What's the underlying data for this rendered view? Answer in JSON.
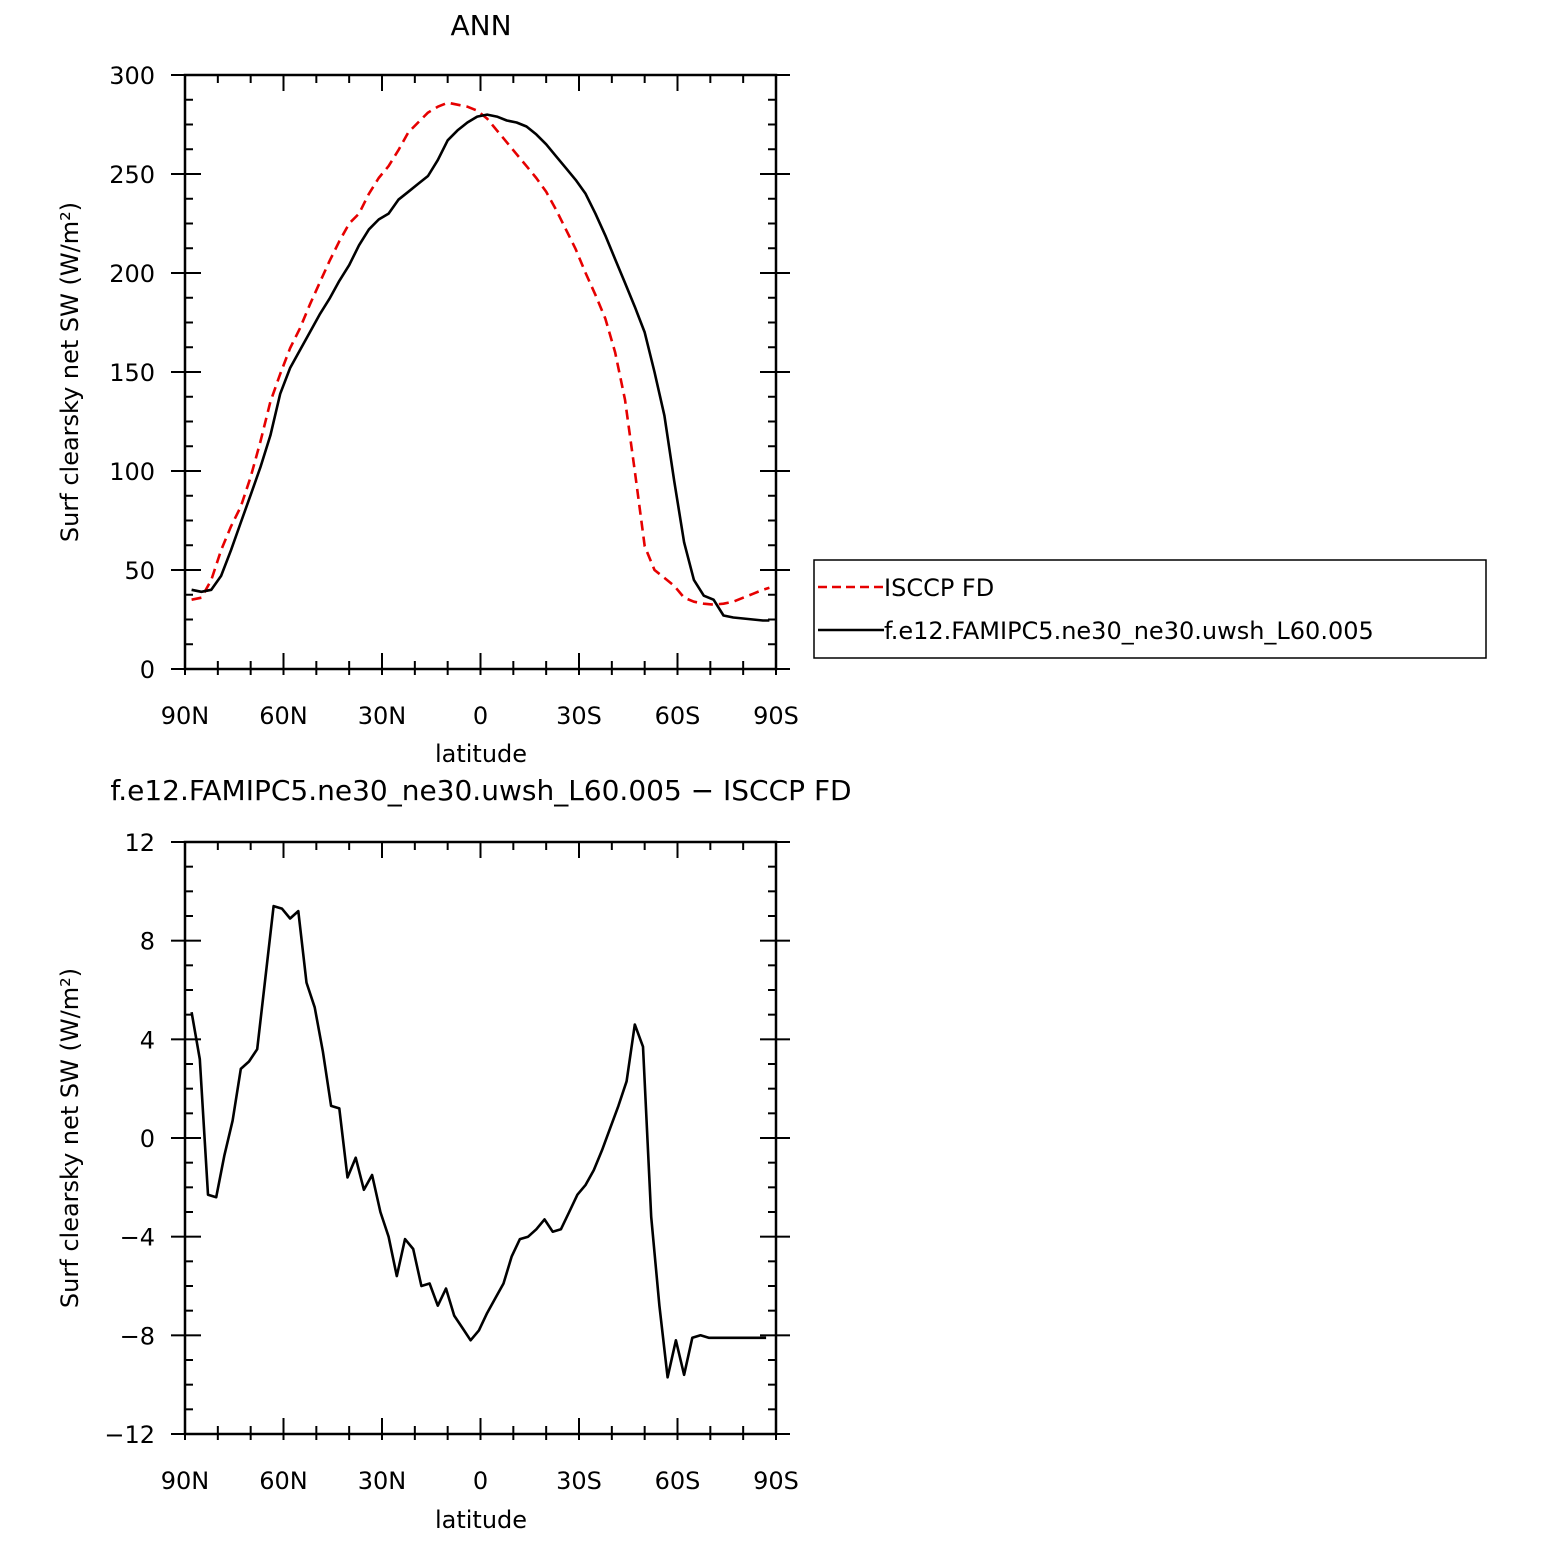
{
  "chart_data": [
    {
      "type": "line",
      "title": "ANN",
      "xlabel": "latitude",
      "ylabel": "Surf clearsky net SW (W/m²)",
      "xlim": [
        90,
        -90
      ],
      "ylim": [
        0,
        300
      ],
      "x_ticks": [
        90,
        60,
        30,
        0,
        -30,
        -60,
        -90
      ],
      "x_tick_labels": [
        "90N",
        "60N",
        "30N",
        "0",
        "30S",
        "60S",
        "90S"
      ],
      "y_ticks": [
        0,
        50,
        100,
        150,
        200,
        250,
        300
      ],
      "y_tick_labels": [
        "0",
        "50",
        "100",
        "150",
        "200",
        "250",
        "300"
      ],
      "legend": {
        "position": "right"
      },
      "series": [
        {
          "name": "ISCCP FD",
          "color": "#e60000",
          "dash": "dashed",
          "x": [
            88,
            85,
            82,
            79,
            76,
            73,
            70,
            67,
            64,
            61,
            58,
            55,
            52,
            49,
            46,
            43,
            40,
            37,
            34,
            31,
            28,
            25,
            22,
            19,
            16,
            13,
            10,
            7,
            4,
            1,
            -2,
            -5,
            -8,
            -11,
            -14,
            -17,
            -20,
            -23,
            -26,
            -29,
            -32,
            -35,
            -38,
            -41,
            -44,
            -47,
            -50,
            -53,
            -56,
            -59,
            -62,
            -65,
            -68,
            -71,
            -74,
            -77,
            -80,
            -83,
            -86,
            -88
          ],
          "values": [
            35,
            36,
            45,
            60,
            72,
            82,
            97,
            115,
            135,
            149,
            162,
            172,
            184,
            195,
            206,
            216,
            225,
            230,
            240,
            248,
            254,
            262,
            271,
            276,
            281,
            284,
            286,
            285,
            284,
            282,
            278,
            272,
            266,
            260,
            254,
            248,
            241,
            232,
            222,
            212,
            200,
            189,
            177,
            160,
            136,
            100,
            62,
            50,
            46,
            42,
            36,
            34,
            33,
            32.5,
            33,
            34,
            36,
            38,
            40,
            41
          ]
        },
        {
          "name": "f.e12.FAMIPC5.ne30_ne30.uwsh_L60.005",
          "color": "#000000",
          "dash": "solid",
          "x": [
            88,
            85,
            82,
            79,
            76,
            73,
            70,
            67,
            64,
            61,
            58,
            55,
            52,
            49,
            46,
            43,
            40,
            37,
            34,
            31,
            28,
            25,
            22,
            19,
            16,
            13,
            10,
            7,
            4,
            1,
            -2,
            -5,
            -8,
            -11,
            -14,
            -17,
            -20,
            -23,
            -26,
            -29,
            -32,
            -35,
            -38,
            -41,
            -44,
            -47,
            -50,
            -53,
            -56,
            -59,
            -62,
            -65,
            -68,
            -71,
            -74,
            -77,
            -80,
            -83,
            -86,
            -88
          ],
          "values": [
            40,
            39,
            40,
            47,
            60,
            74,
            88,
            102,
            118,
            139,
            152,
            161,
            170,
            179,
            187,
            196,
            204,
            214,
            222,
            227,
            230,
            237,
            241,
            245,
            249,
            257,
            267,
            272,
            276,
            279,
            280,
            279,
            277,
            276,
            274,
            270,
            265,
            259,
            253,
            247,
            240,
            230,
            219,
            207,
            195,
            183,
            170,
            150,
            128,
            95,
            64,
            45,
            37,
            35,
            27,
            26,
            25.5,
            25,
            24.5,
            24.5
          ]
        }
      ]
    },
    {
      "type": "line",
      "title": "f.e12.FAMIPC5.ne30_ne30.uwsh_L60.005 − ISCCP FD",
      "xlabel": "latitude",
      "ylabel": "Surf clearsky net SW (W/m²)",
      "xlim": [
        90,
        -90
      ],
      "ylim": [
        -12,
        12
      ],
      "x_ticks": [
        90,
        60,
        30,
        0,
        -30,
        -60,
        -90
      ],
      "x_tick_labels": [
        "90N",
        "60N",
        "30N",
        "0",
        "30S",
        "60S",
        "90S"
      ],
      "y_ticks": [
        -12,
        -8,
        -4,
        0,
        4,
        8,
        12
      ],
      "y_tick_labels": [
        "−12",
        "−8",
        "−4",
        "0",
        "4",
        "8",
        "12"
      ],
      "series": [
        {
          "color": "#000000",
          "dash": "solid",
          "x": [
            88,
            85.5,
            83,
            80.5,
            78,
            75.5,
            73,
            70.5,
            68,
            65.5,
            63,
            60.5,
            58,
            55.5,
            53,
            50.5,
            48,
            45.5,
            43,
            40.5,
            38,
            35.5,
            33,
            30.5,
            28,
            25.5,
            23,
            20.5,
            18,
            15.5,
            13,
            10.5,
            8,
            5.5,
            3,
            0.5,
            -2,
            -4.5,
            -7,
            -9.5,
            -12,
            -14.5,
            -17,
            -19.5,
            -22,
            -24.5,
            -27,
            -29.5,
            -32,
            -34.5,
            -37,
            -39.5,
            -42,
            -44.5,
            -47,
            -49.5,
            -52,
            -54.5,
            -57,
            -59.5,
            -62,
            -64.5,
            -67,
            -69.5,
            -72,
            -74.5,
            -77,
            -79.5,
            -82,
            -84.5,
            -87
          ],
          "values": [
            5.1,
            3.2,
            -2.3,
            -2.4,
            -0.7,
            0.7,
            2.8,
            3.1,
            3.6,
            6.5,
            9.4,
            9.3,
            8.9,
            9.2,
            6.3,
            5.3,
            3.5,
            1.3,
            1.2,
            -1.6,
            -0.8,
            -2.1,
            -1.5,
            -3.0,
            -4.0,
            -5.6,
            -4.1,
            -4.5,
            -6.0,
            -5.9,
            -6.8,
            -6.1,
            -7.2,
            -7.7,
            -8.2,
            -7.8,
            -7.1,
            -6.5,
            -5.9,
            -4.8,
            -4.1,
            -4.0,
            -3.7,
            -3.3,
            -3.8,
            -3.7,
            -3.0,
            -2.3,
            -1.9,
            -1.3,
            -0.5,
            0.4,
            1.3,
            2.3,
            4.6,
            3.7,
            -3.2,
            -6.8,
            -9.7,
            -8.2,
            -9.6,
            -8.1,
            -8.0,
            -8.1,
            -8.1,
            -8.1,
            -8.1,
            -8.1,
            -8.1,
            -8.1,
            -8.1
          ]
        }
      ]
    }
  ]
}
